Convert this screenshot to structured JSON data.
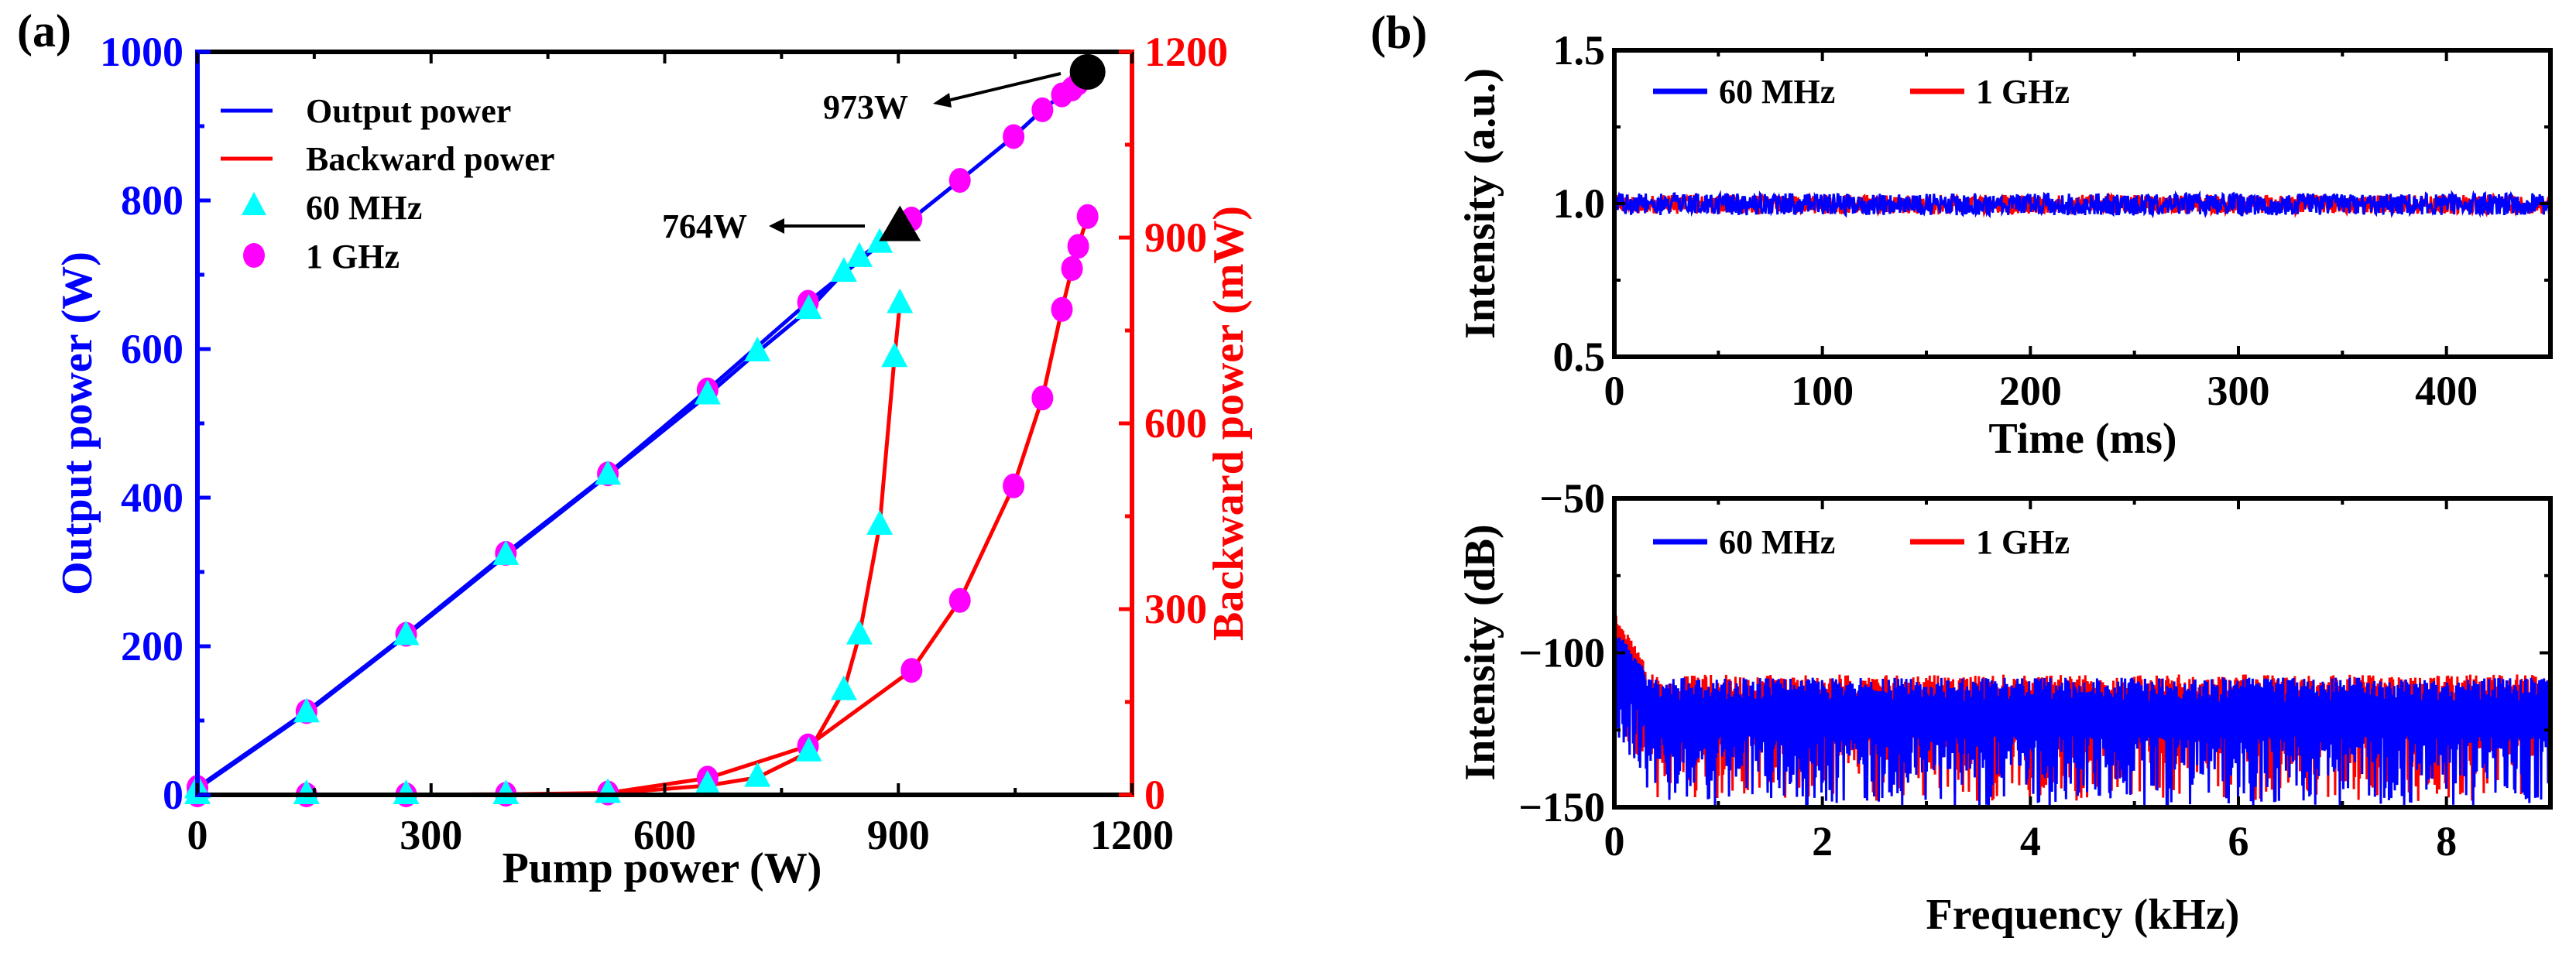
{
  "panels": {
    "a": "(a)",
    "b": "(b)"
  },
  "colors": {
    "blue": "#0000ff",
    "red": "#ff0000",
    "cyan": "#00ffff",
    "magenta": "#ff00ff",
    "black": "#000000"
  },
  "chart_data": [
    {
      "type": "line",
      "panel": "(a)",
      "xlabel": "Pump power (W)",
      "ylabel": "Output power (W)",
      "ylabel_right": "Backward power (mW)",
      "xlim": [
        0,
        1200
      ],
      "ylim": [
        0,
        1000
      ],
      "ylim_right": [
        0,
        1200
      ],
      "xticks": [
        0,
        300,
        600,
        900,
        1200
      ],
      "yticks": [
        0,
        200,
        400,
        600,
        800,
        1000
      ],
      "yticks_right": [
        0,
        300,
        600,
        900,
        1200
      ],
      "legend": {
        "placement": "top-left",
        "entries": [
          "Output power",
          "Backward power",
          "60 MHz",
          "1 GHz"
        ]
      },
      "series": [
        {
          "name": "60 MHz",
          "marker": "triangle",
          "pump": [
            0,
            140,
            268,
            396,
            527,
            655,
            719,
            785,
            830,
            850,
            876,
            895,
            902
          ],
          "output": [
            8,
            110,
            214,
            322,
            430,
            538,
            596,
            653,
            703,
            723,
            742,
            758,
            764
          ],
          "backward": [
            0,
            0,
            0,
            0,
            2,
            15,
            28,
            69,
            168,
            258,
            435,
            706,
            793
          ]
        },
        {
          "name": "1 GHz",
          "marker": "circle",
          "pump": [
            0,
            140,
            268,
            396,
            527,
            655,
            784,
            917,
            979,
            1048,
            1085,
            1110,
            1123,
            1131,
            1143
          ],
          "output": [
            10,
            112,
            216,
            325,
            432,
            545,
            663,
            775,
            827,
            886,
            922,
            942,
            950,
            958,
            973
          ],
          "backward": [
            0,
            0,
            0,
            1,
            3,
            27,
            79,
            201,
            314,
            499,
            641,
            784,
            850,
            886,
            934
          ]
        }
      ],
      "annotations": [
        {
          "text": "973W",
          "pump": 1143,
          "output": 973,
          "marker": "circle"
        },
        {
          "text": "764W",
          "pump": 902,
          "output": 764,
          "marker": "triangle"
        }
      ]
    },
    {
      "type": "line",
      "panel": "(b) top",
      "xlabel": "Time (ms)",
      "ylabel": "Intensity (a.u.)",
      "xlim": [
        0,
        450
      ],
      "ylim": [
        0.5,
        1.5
      ],
      "xticks": [
        0,
        100,
        200,
        300,
        400
      ],
      "yticks": [
        0.5,
        1.0,
        1.5
      ],
      "yticklabels": [
        "0.5",
        "1.0",
        "1.5"
      ],
      "legend": {
        "placement": "top-left",
        "entries": [
          "60 MHz",
          "1 GHz"
        ]
      },
      "series": [
        {
          "name": "1 GHz",
          "mean": 1.0,
          "band": [
            0.965,
            1.03
          ]
        },
        {
          "name": "60 MHz",
          "mean": 1.0,
          "band": [
            0.96,
            1.035
          ]
        }
      ]
    },
    {
      "type": "line",
      "panel": "(b) bottom",
      "xlabel": "Frequency (kHz)",
      "ylabel": "Intensity (dB)",
      "xlim": [
        0,
        9
      ],
      "ylim": [
        -150,
        -50
      ],
      "xticks": [
        0,
        2,
        4,
        6,
        8
      ],
      "yticks": [
        -150,
        -100,
        -50
      ],
      "yticklabels": [
        "−150",
        "−100",
        "−50"
      ],
      "legend": {
        "placement": "top-left",
        "entries": [
          "60 MHz",
          "1 GHz"
        ]
      },
      "series": [
        {
          "name": "1 GHz",
          "peak_near_zero": -86,
          "floor_top": -104,
          "floor_bottom": -148
        },
        {
          "name": "60 MHz",
          "peak_near_zero": -92,
          "floor_top": -105,
          "floor_bottom": -150
        }
      ]
    }
  ]
}
